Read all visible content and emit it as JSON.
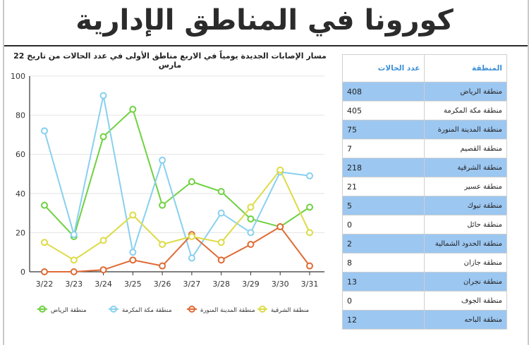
{
  "page": {
    "title": "كورونا في المناطق الإدارية"
  },
  "table": {
    "headers": {
      "region": "المنطقة",
      "count": "عدد الحالات"
    },
    "rows": [
      {
        "region": "منطقة الرياض",
        "count": "408"
      },
      {
        "region": "منطقة مكة المكرمة",
        "count": "405"
      },
      {
        "region": "منطقة المدينة المنورة",
        "count": "75"
      },
      {
        "region": "منطقة القصيم",
        "count": "7"
      },
      {
        "region": "منطقة الشرقية",
        "count": "218"
      },
      {
        "region": "منطقة عسير",
        "count": "21"
      },
      {
        "region": "منطقة تبوك",
        "count": "5"
      },
      {
        "region": "منطقة حائل",
        "count": "0"
      },
      {
        "region": "منطقة الحدود الشمالية",
        "count": "2"
      },
      {
        "region": "منطقة جازان",
        "count": "8"
      },
      {
        "region": "منطقة نجران",
        "count": "13"
      },
      {
        "region": "منطقة الجوف",
        "count": "0"
      },
      {
        "region": "منطقة الباحه",
        "count": "12"
      }
    ]
  },
  "chart_data": {
    "type": "line",
    "title": "مسار الإصابات الجديدة يومياً في الاربع مناطق الأولى في عدد الحالات من تاريخ 22 مارس",
    "categories": [
      "3/22",
      "3/23",
      "3/24",
      "3/25",
      "3/26",
      "3/27",
      "3/28",
      "3/29",
      "3/30",
      "3/31"
    ],
    "ylim": [
      0,
      100
    ],
    "yticks": [
      "0",
      "20",
      "40",
      "60",
      "80",
      "100"
    ],
    "grid": true,
    "legend_position": "bottom",
    "series": [
      {
        "name": "منطقة الرياض",
        "color": "#6fd140",
        "values": [
          34,
          18,
          69,
          83,
          34,
          46,
          41,
          27,
          23,
          33
        ]
      },
      {
        "name": "منطقة مكة المكرمة",
        "color": "#88d0f0",
        "values": [
          72,
          19,
          90,
          10,
          57,
          7,
          30,
          20,
          51,
          49
        ]
      },
      {
        "name": "منطقة المدينة المنورة",
        "color": "#df6b35",
        "values": [
          0,
          0,
          1,
          6,
          3,
          19,
          6,
          14,
          23,
          3
        ]
      },
      {
        "name": "منطقة الشرقية",
        "color": "#dddb47",
        "values": [
          15,
          6,
          16,
          29,
          14,
          18,
          15,
          33,
          52,
          20
        ]
      }
    ]
  }
}
